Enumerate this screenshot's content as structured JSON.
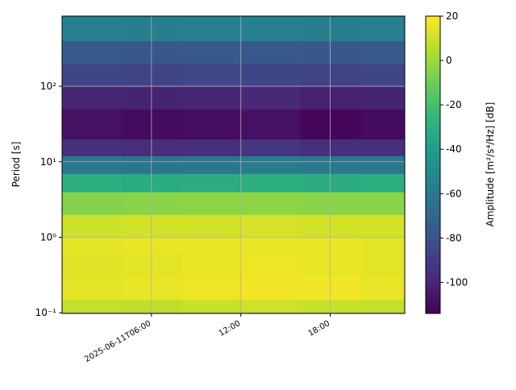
{
  "chart_data": {
    "type": "heatmap",
    "ylabel": "Period [s]",
    "colorbar_label": "Amplitude [m²/s⁴/Hz] [dB]",
    "colormap": "viridis",
    "log_y": true,
    "grid": true,
    "x_edges": [
      0,
      4,
      8,
      12,
      16,
      20,
      23
    ],
    "y_edges": [
      0.098,
      0.15,
      0.3,
      0.6,
      1,
      2,
      4,
      7,
      12,
      20,
      50,
      100,
      200,
      400,
      850
    ],
    "values": [
      [
        8,
        7,
        9,
        10,
        9,
        8
      ],
      [
        15,
        16,
        17,
        18,
        18,
        16
      ],
      [
        14,
        15,
        16,
        17,
        16,
        15
      ],
      [
        15,
        16,
        16,
        16,
        16,
        15
      ],
      [
        10,
        11,
        11,
        12,
        11,
        11
      ],
      [
        -5,
        -4,
        -3,
        -3,
        -4,
        -4
      ],
      [
        -30,
        -32,
        -31,
        -30,
        -31,
        -30
      ],
      [
        -60,
        -62,
        -61,
        -58,
        -60,
        -60
      ],
      [
        -95,
        -97,
        -96,
        -93,
        -96,
        -95
      ],
      [
        -108,
        -110,
        -109,
        -108,
        -112,
        -110
      ],
      [
        -100,
        -101,
        -100,
        -99,
        -102,
        -101
      ],
      [
        -86,
        -87,
        -85,
        -86,
        -88,
        -86
      ],
      [
        -76,
        -78,
        -77,
        -77,
        -78,
        -76
      ],
      [
        -55,
        -56,
        -55,
        -55,
        -56,
        -55
      ]
    ],
    "xlim": [
      0,
      23
    ],
    "xticks": [
      {
        "value": 6,
        "label": "2025-06-11T06:00"
      },
      {
        "value": 12,
        "label": "12:00"
      },
      {
        "value": 18,
        "label": "18:00"
      }
    ],
    "ylim": [
      0.098,
      850
    ],
    "yticks": [
      {
        "value": 0.1,
        "label": "10⁻¹"
      },
      {
        "value": 1,
        "label": "10⁰"
      },
      {
        "value": 10,
        "label": "10¹"
      },
      {
        "value": 100,
        "label": "10²"
      }
    ],
    "clim": [
      -114,
      20
    ],
    "cticks": [
      -100,
      -80,
      -60,
      -40,
      -20,
      0,
      20
    ]
  }
}
